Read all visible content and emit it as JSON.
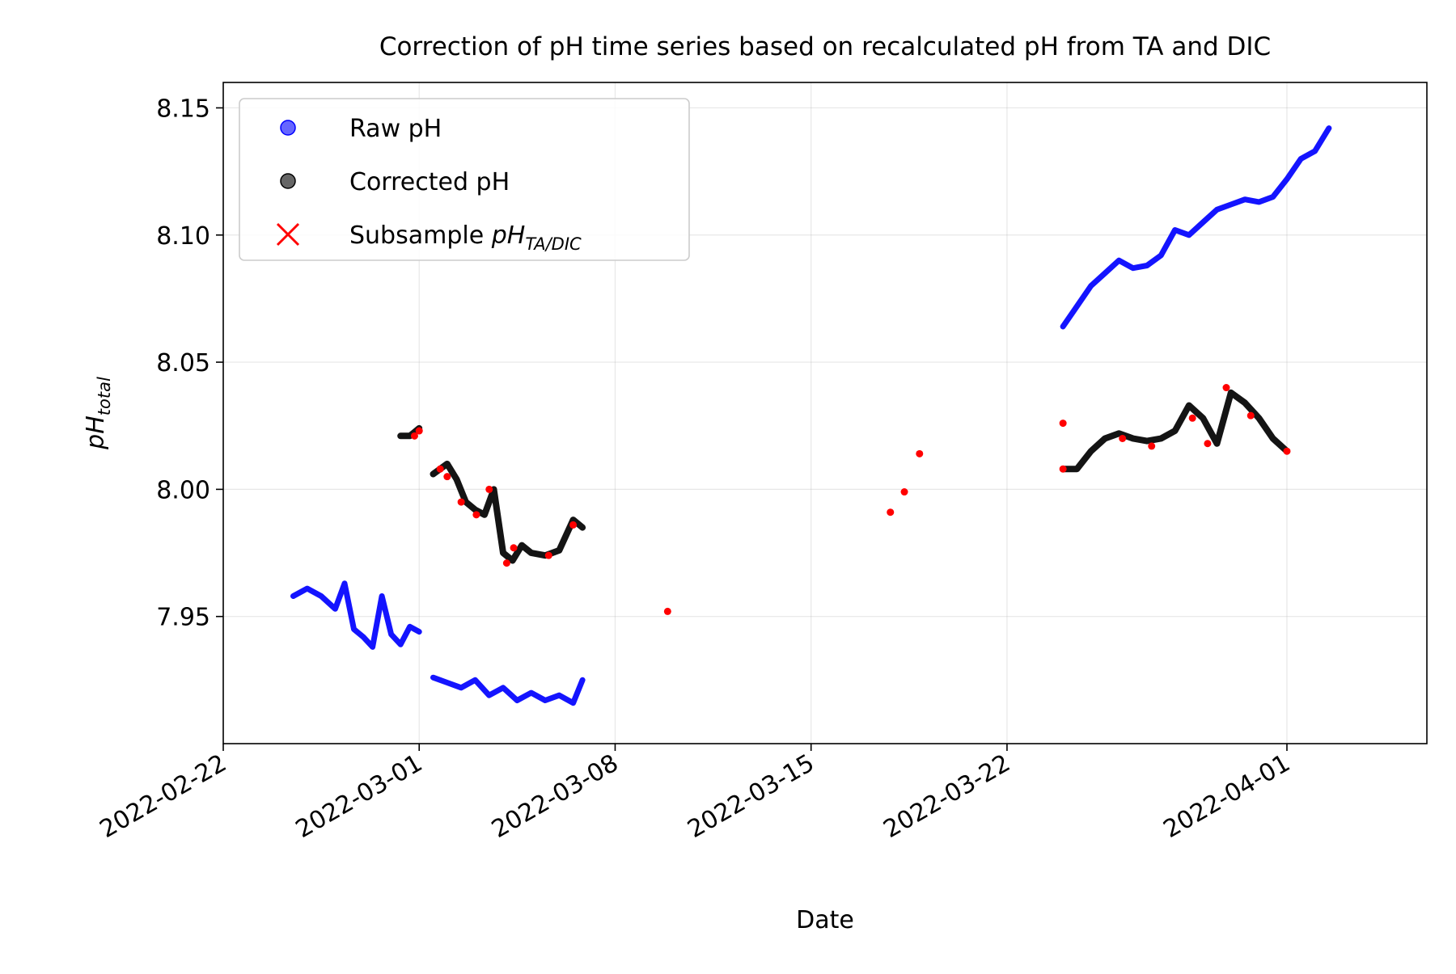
{
  "chart_data": {
    "type": "scatter",
    "title": "Correction of pH time series based on recalculated pH from TA and DIC",
    "xlabel": "Date",
    "ylabel": {
      "base": "pH",
      "subscript": "total"
    },
    "x_type": "date",
    "xlim": [
      "2022-02-22",
      "2022-04-06"
    ],
    "ylim": [
      7.9,
      8.16
    ],
    "x_ticks": [
      "2022-02-22",
      "2022-03-01",
      "2022-03-08",
      "2022-03-15",
      "2022-03-22",
      "2022-04-01"
    ],
    "y_ticks": [
      7.95,
      8.0,
      8.05,
      8.1,
      8.15
    ],
    "y_tick_labels": [
      "7.95",
      "8.00",
      "8.05",
      "8.10",
      "8.15"
    ],
    "grid": true,
    "legend_position": "top-left",
    "legend": [
      {
        "name": "Raw pH",
        "marker": "circle",
        "color": "#0000ff"
      },
      {
        "name": "Corrected pH",
        "marker": "circle",
        "color": "#000000"
      },
      {
        "name": "Subsample ",
        "name_math": "pH",
        "name_sub": "TA/DIC",
        "marker": "x",
        "color": "#ff0000"
      }
    ],
    "series": [
      {
        "name": "Raw pH",
        "color": "#0000ff",
        "segments": [
          {
            "x": [
              "2022-02-24T12:00",
              "2022-02-25T00:00",
              "2022-02-25T12:00",
              "2022-02-26T00:00",
              "2022-02-26T08:00",
              "2022-02-26T16:00",
              "2022-02-27T00:00",
              "2022-02-27T08:00",
              "2022-02-27T16:00",
              "2022-02-28T00:00",
              "2022-02-28T08:00",
              "2022-02-28T16:00",
              "2022-03-01T00:00"
            ],
            "y": [
              7.958,
              7.961,
              7.958,
              7.953,
              7.963,
              7.945,
              7.942,
              7.938,
              7.958,
              7.943,
              7.939,
              7.946,
              7.944
            ]
          },
          {
            "x": [
              "2022-03-01T12:00",
              "2022-03-02T00:00",
              "2022-03-02T12:00",
              "2022-03-03T00:00",
              "2022-03-03T12:00",
              "2022-03-04T00:00",
              "2022-03-04T12:00",
              "2022-03-05T00:00",
              "2022-03-05T12:00",
              "2022-03-06T00:00",
              "2022-03-06T12:00",
              "2022-03-06T20:00"
            ],
            "y": [
              7.926,
              7.924,
              7.922,
              7.925,
              7.919,
              7.922,
              7.917,
              7.92,
              7.917,
              7.919,
              7.916,
              7.925
            ]
          },
          {
            "x": [
              "2022-03-24T00:00",
              "2022-03-24T12:00",
              "2022-03-25T00:00",
              "2022-03-25T12:00",
              "2022-03-26T00:00",
              "2022-03-26T12:00",
              "2022-03-27T00:00",
              "2022-03-27T12:00",
              "2022-03-28T00:00",
              "2022-03-28T12:00",
              "2022-03-29T00:00",
              "2022-03-29T12:00",
              "2022-03-30T00:00",
              "2022-03-30T12:00",
              "2022-03-31T00:00",
              "2022-03-31T12:00",
              "2022-04-01T00:00",
              "2022-04-01T12:00",
              "2022-04-02T00:00",
              "2022-04-02T12:00"
            ],
            "y": [
              8.064,
              8.072,
              8.08,
              8.085,
              8.09,
              8.087,
              8.088,
              8.092,
              8.102,
              8.1,
              8.105,
              8.11,
              8.112,
              8.114,
              8.113,
              8.115,
              8.122,
              8.13,
              8.133,
              8.142
            ]
          }
        ]
      },
      {
        "name": "Corrected pH",
        "color": "#000000",
        "segments": [
          {
            "x": [
              "2022-02-28T08:00",
              "2022-02-28T16:00",
              "2022-03-01T00:00"
            ],
            "y": [
              8.021,
              8.021,
              8.024
            ]
          },
          {
            "x": [
              "2022-03-01T12:00",
              "2022-03-02T00:00",
              "2022-03-02T08:00",
              "2022-03-02T16:00",
              "2022-03-03T00:00",
              "2022-03-03T08:00",
              "2022-03-03T16:00",
              "2022-03-04T00:00",
              "2022-03-04T08:00",
              "2022-03-04T16:00",
              "2022-03-05T00:00",
              "2022-03-05T12:00",
              "2022-03-06T00:00",
              "2022-03-06T12:00",
              "2022-03-06T20:00"
            ],
            "y": [
              8.006,
              8.01,
              8.004,
              7.995,
              7.992,
              7.99,
              8.0,
              7.975,
              7.972,
              7.978,
              7.975,
              7.974,
              7.976,
              7.988,
              7.985
            ]
          },
          {
            "x": [
              "2022-03-24T00:00",
              "2022-03-24T12:00",
              "2022-03-25T00:00",
              "2022-03-25T12:00",
              "2022-03-26T00:00",
              "2022-03-26T12:00",
              "2022-03-27T00:00",
              "2022-03-27T12:00",
              "2022-03-28T00:00",
              "2022-03-28T12:00",
              "2022-03-29T00:00",
              "2022-03-29T12:00",
              "2022-03-30T00:00",
              "2022-03-30T12:00",
              "2022-03-31T00:00",
              "2022-03-31T12:00",
              "2022-04-01T00:00"
            ],
            "y": [
              8.008,
              8.008,
              8.015,
              8.02,
              8.022,
              8.02,
              8.019,
              8.02,
              8.023,
              8.033,
              8.028,
              8.018,
              8.038,
              8.034,
              8.028,
              8.02,
              8.015
            ]
          }
        ]
      },
      {
        "name": "Subsample pH TA/DIC",
        "color": "#ff0000",
        "x": [
          "2022-02-28T20:00",
          "2022-03-01T00:00",
          "2022-03-01T18:00",
          "2022-03-02T00:00",
          "2022-03-02T12:00",
          "2022-03-03T01:00",
          "2022-03-03T12:00",
          "2022-03-04T03:00",
          "2022-03-04T09:00",
          "2022-03-05T15:00",
          "2022-03-06T12:00",
          "2022-03-09T21:00",
          "2022-03-17T20:00",
          "2022-03-18T08:00",
          "2022-03-18T21:00",
          "2022-03-24T00:00",
          "2022-03-24T00:00",
          "2022-03-26T03:00",
          "2022-03-27T04:00",
          "2022-03-28T15:00",
          "2022-03-29T04:00",
          "2022-03-29T20:00",
          "2022-03-30T17:00",
          "2022-04-01T00:00"
        ],
        "y": [
          8.021,
          8.023,
          8.008,
          8.005,
          7.995,
          7.99,
          8.0,
          7.971,
          7.977,
          7.974,
          7.986,
          7.952,
          7.991,
          7.999,
          8.014,
          8.026,
          8.008,
          8.02,
          8.017,
          8.028,
          8.018,
          8.04,
          8.029,
          8.015
        ]
      }
    ]
  }
}
